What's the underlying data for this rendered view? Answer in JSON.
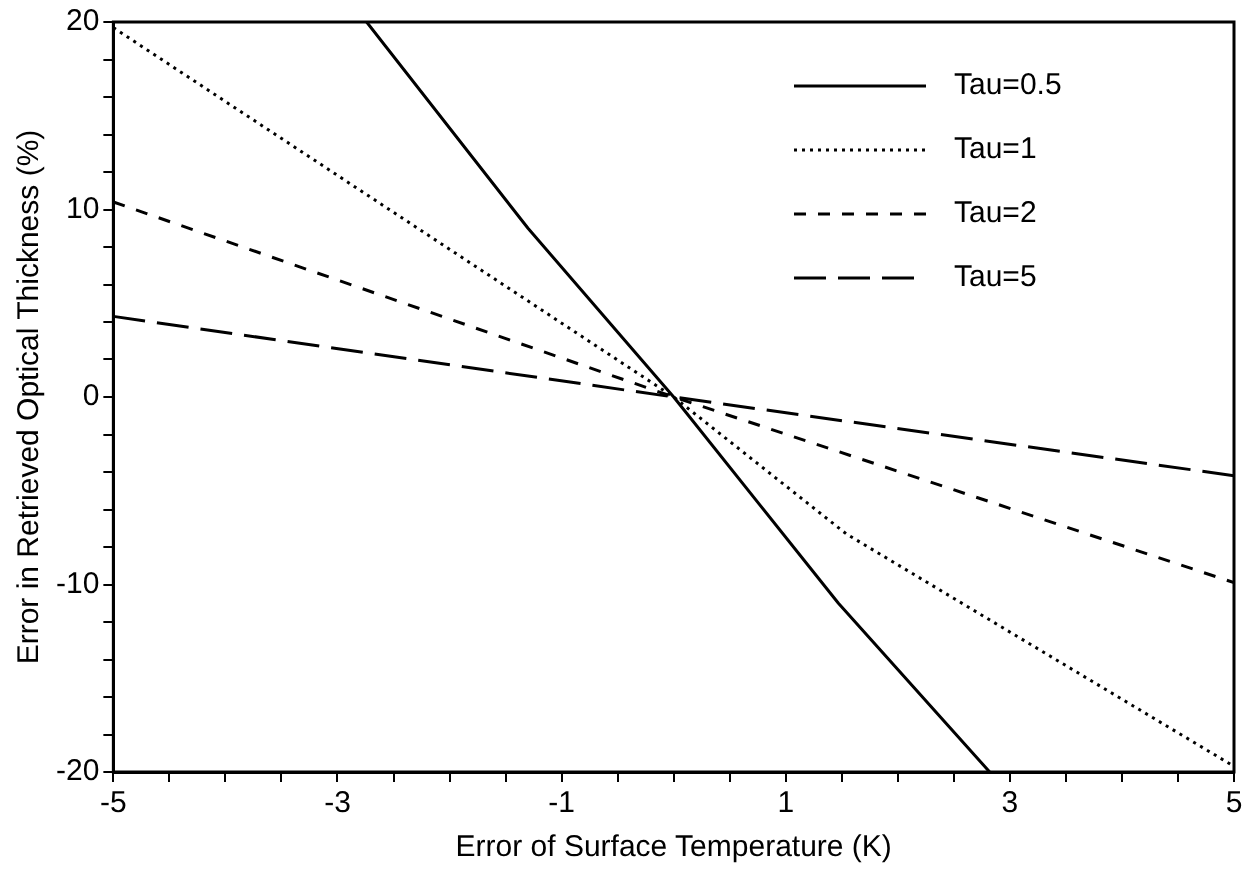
{
  "chart_data": {
    "type": "line",
    "xlabel": "Error of Surface Temperature (K)",
    "ylabel": "Error in Retrieved Optical Thickness (%)",
    "xlim": [
      -5,
      5
    ],
    "ylim": [
      -20,
      20
    ],
    "xticks": [
      -5,
      {
        "value": -4.5,
        "label": null
      },
      {
        "value": -4,
        "label": null
      },
      {
        "value": -3.5,
        "label": null
      },
      -3,
      {
        "value": -2.5,
        "label": null
      },
      {
        "value": -2,
        "label": null
      },
      {
        "value": -1.5,
        "label": null
      },
      -1,
      {
        "value": -0.5,
        "label": null
      },
      {
        "value": 0,
        "label": null
      },
      {
        "value": 0.5,
        "label": null
      },
      1,
      {
        "value": 1.5,
        "label": null
      },
      {
        "value": 2,
        "label": null
      },
      {
        "value": 2.5,
        "label": null
      },
      3,
      {
        "value": 3.5,
        "label": null
      },
      {
        "value": 4,
        "label": null
      },
      {
        "value": 4.5,
        "label": null
      },
      5
    ],
    "yticks": [
      -20,
      {
        "value": -18,
        "label": null
      },
      {
        "value": -16,
        "label": null
      },
      {
        "value": -14,
        "label": null
      },
      {
        "value": -12,
        "label": null
      },
      -10,
      {
        "value": -8,
        "label": null
      },
      {
        "value": -6,
        "label": null
      },
      {
        "value": -4,
        "label": null
      },
      {
        "value": -2,
        "label": null
      },
      0,
      {
        "value": 2,
        "label": null
      },
      {
        "value": 4,
        "label": null
      },
      {
        "value": 6,
        "label": null
      },
      {
        "value": 8,
        "label": null
      },
      10,
      {
        "value": 12,
        "label": null
      },
      {
        "value": 14,
        "label": null
      },
      {
        "value": 16,
        "label": null
      },
      {
        "value": 18,
        "label": null
      },
      20
    ],
    "grid": false,
    "legend": "top right",
    "marker": "none",
    "series": [
      {
        "name": "Tau=0.5",
        "color": "#000000",
        "line_style": "solid",
        "x": [
          -2.74,
          -1.3,
          0,
          1.47,
          2.82
        ],
        "values": [
          20,
          9,
          0,
          -11,
          -20
        ]
      },
      {
        "name": "Tau=1",
        "color": "#000000",
        "line_style": "dotted",
        "x": [
          -5,
          0,
          1.54,
          5
        ],
        "values": [
          19.7,
          0,
          -7.3,
          -19.7
        ]
      },
      {
        "name": "Tau=2",
        "color": "#000000",
        "line_style": "dashed",
        "x": [
          -5,
          0,
          5
        ],
        "values": [
          10.4,
          0,
          -9.9
        ]
      },
      {
        "name": "Tau=5",
        "color": "#000000",
        "line_style": "longdash",
        "x": [
          -5,
          0,
          5
        ],
        "values": [
          4.3,
          0,
          -4.2
        ]
      }
    ]
  }
}
